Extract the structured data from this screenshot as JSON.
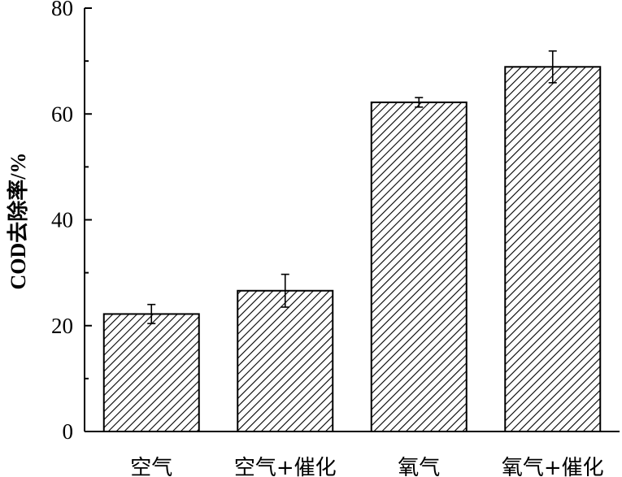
{
  "chart_data": {
    "type": "bar",
    "title": "",
    "xlabel": "",
    "ylabel": "COD去除率/%",
    "ylim": [
      0,
      80
    ],
    "yticks": [
      0,
      20,
      40,
      60,
      80
    ],
    "categories": [
      "空气",
      "空气+催化",
      "氧气",
      "氧气+催化"
    ],
    "values": [
      22.2,
      26.6,
      62.2,
      68.9
    ],
    "errors": [
      1.8,
      3.1,
      0.9,
      3.0
    ],
    "bar_fill": "diagonal-hatch",
    "bar_color": "#000000",
    "grid": false,
    "legend": "none"
  }
}
